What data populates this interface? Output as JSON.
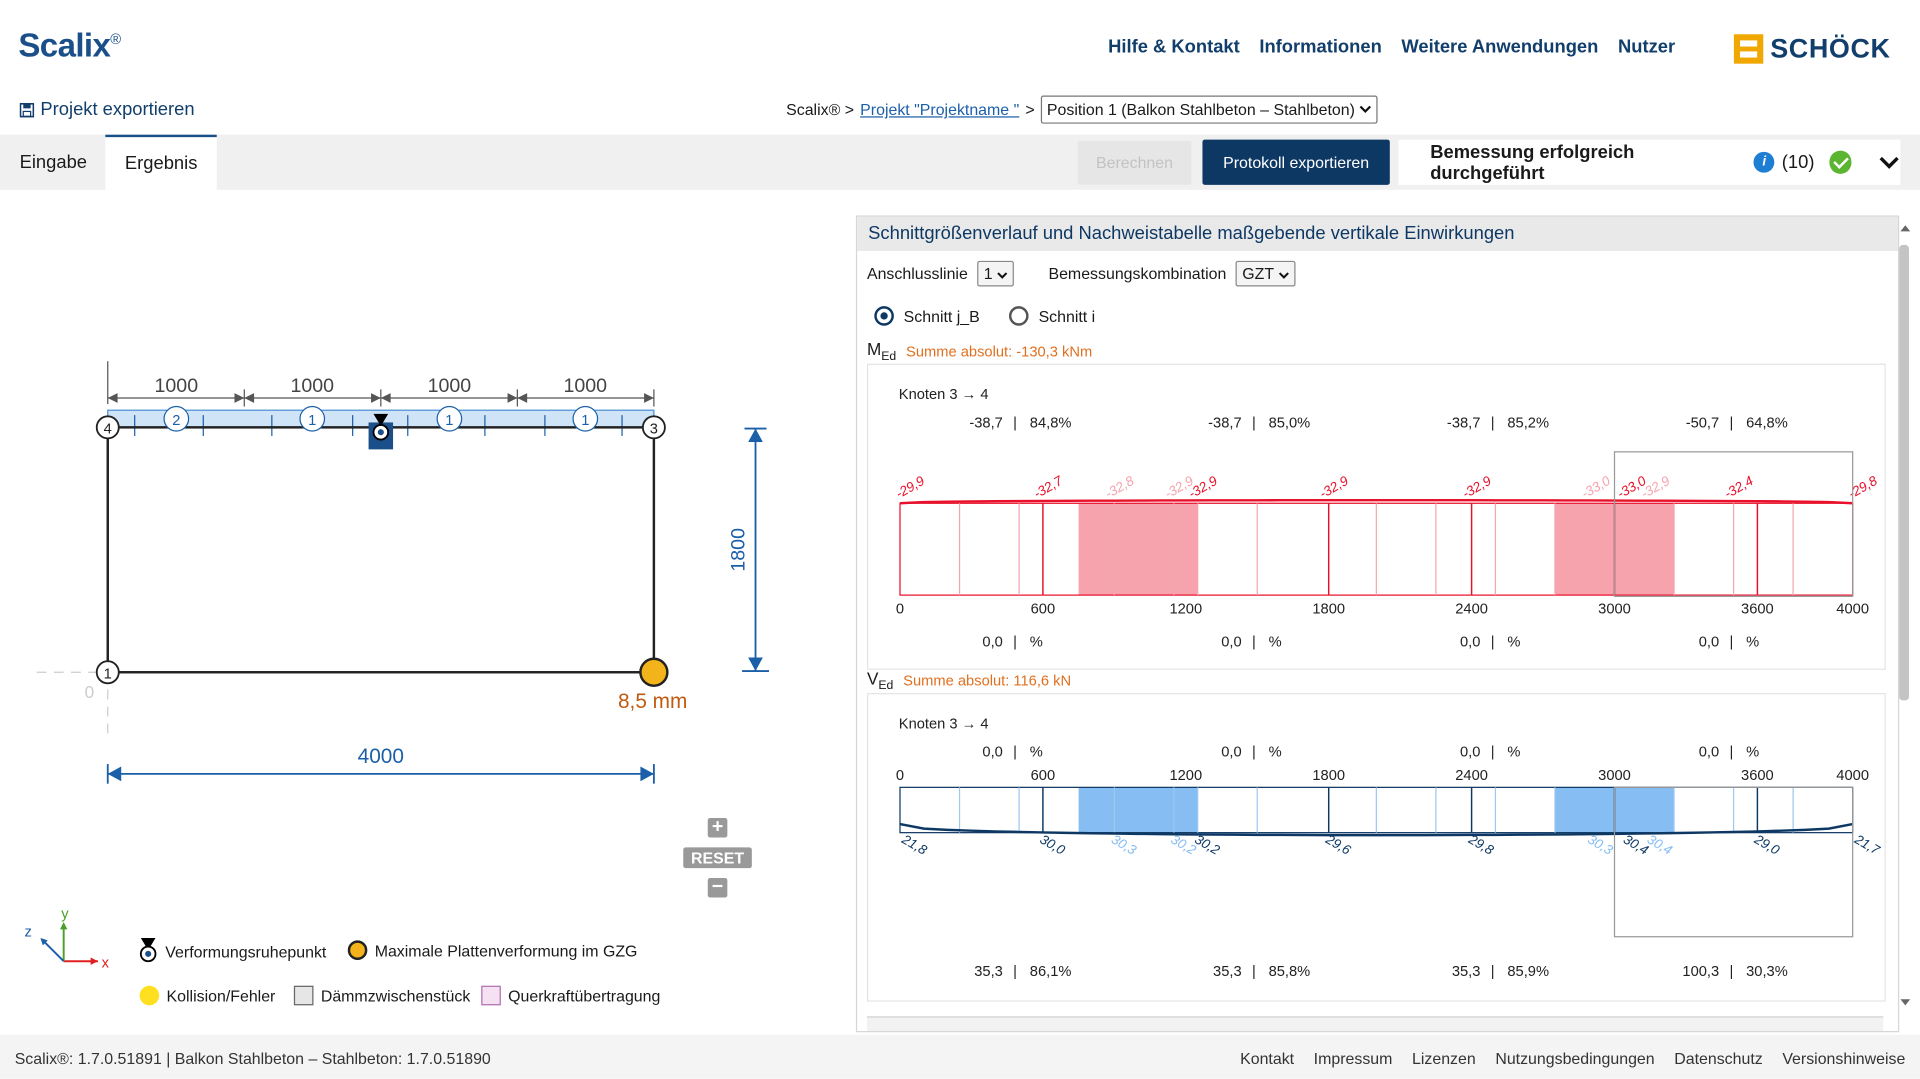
{
  "app": {
    "logo_text": "Scalix",
    "logo_mark": "®",
    "brand": "SCHÖCK"
  },
  "nav": {
    "items": [
      "Hilfe & Kontakt",
      "Informationen",
      "Weitere Anwendungen",
      "Nutzer"
    ]
  },
  "export_project": "Projekt exportieren",
  "breadcrumb": {
    "root": "Scalix® >",
    "project": "Projekt \"Projektname \"",
    "sep": ">",
    "position": "Position 1 (Balkon Stahlbeton – Stahlbeton)"
  },
  "tabs": {
    "input": "Eingabe",
    "result": "Ergebnis"
  },
  "toolbar": {
    "calc": "Berechnen",
    "export_protocol": "Protokoll exportieren"
  },
  "status": {
    "text": "Bemessung erfolgreich durchgeführt",
    "info": "i",
    "count": "(10)"
  },
  "drawing": {
    "spans": [
      "1000",
      "1000",
      "1000",
      "1000"
    ],
    "height": "1800",
    "width": "4000",
    "deflection": "8,5 mm",
    "origin": "0",
    "nodes": [
      "4",
      "3",
      "1"
    ],
    "elements": [
      "2",
      "1",
      "1",
      "1"
    ]
  },
  "zoom": {
    "plus": "+",
    "reset": "RESET",
    "minus": "−"
  },
  "legend": {
    "deform_point": "Verformungsruhepunkt",
    "max_deflection": "Maximale Plattenverformung im GZG",
    "collision": "Kollision/Fehler",
    "insulation": "Dämmzwischenstück",
    "shear": "Querkraftübertragung",
    "axis_x": "x",
    "axis_y": "y",
    "axis_z": "z"
  },
  "panel": {
    "title": "Schnittgrößenverlauf und Nachweistabelle maßgebende vertikale Einwirkungen",
    "line_label": "Anschlusslinie",
    "line_value": "1",
    "comb_label": "Bemessungskombination",
    "comb_value": "GZT",
    "radio1": "Schnitt j_B",
    "radio2": "Schnitt i",
    "med_symbol": "M",
    "med_sub": "Ed",
    "med_sum": "Summe absolut: -130,3 kNm",
    "ved_symbol": "V",
    "ved_sub": "Ed",
    "ved_sum": "Summe absolut: 116,6 kN"
  },
  "chart_data": [
    {
      "type": "line",
      "title": "Knoten 3 → 4",
      "series_label": "MEd",
      "x_ticks": [
        0,
        600,
        1200,
        1800,
        2400,
        3000,
        3600,
        4000
      ],
      "xlim": [
        0,
        4000
      ],
      "point_labels": [
        {
          "x": 0,
          "y": -29.9,
          "text": "-29,9",
          "faded": false
        },
        {
          "x": 600,
          "y": -32.7,
          "text": "-32,7",
          "faded": false
        },
        {
          "x": 900,
          "y": -32.8,
          "text": "-32,8",
          "faded": true
        },
        {
          "x": 1150,
          "y": -32.9,
          "text": "-32,9",
          "faded": true
        },
        {
          "x": 1250,
          "y": -32.9,
          "text": "-32,9",
          "faded": false
        },
        {
          "x": 1800,
          "y": -32.9,
          "text": "-32,9",
          "faded": false
        },
        {
          "x": 2400,
          "y": -32.9,
          "text": "-32,9",
          "faded": false
        },
        {
          "x": 2900,
          "y": -33.0,
          "text": "-33,0",
          "faded": true
        },
        {
          "x": 3050,
          "y": -33.0,
          "text": "-33,0",
          "faded": false
        },
        {
          "x": 3150,
          "y": -32.9,
          "text": "-32,9",
          "faded": true
        },
        {
          "x": 3500,
          "y": -32.4,
          "text": "-32,4",
          "faded": false
        },
        {
          "x": 4000,
          "y": -29.8,
          "text": "-29,8",
          "faded": false
        }
      ],
      "highlight_ranges": [
        [
          750,
          1250
        ],
        [
          2750,
          3250
        ]
      ],
      "top_values": [
        {
          "value": "-38,7",
          "percent": "84,8%"
        },
        {
          "value": "-38,7",
          "percent": "85,0%"
        },
        {
          "value": "-38,7",
          "percent": "85,2%"
        },
        {
          "value": "-50,7",
          "percent": "64,8%"
        }
      ],
      "bottom_values": [
        {
          "value": "0,0",
          "percent": "%"
        },
        {
          "value": "0,0",
          "percent": "%"
        },
        {
          "value": "0,0",
          "percent": "%"
        },
        {
          "value": "0,0",
          "percent": "%"
        }
      ],
      "color": "#e8102a",
      "fill": "#f7a3ad"
    },
    {
      "type": "line",
      "title": "Knoten 3 → 4",
      "series_label": "VEd",
      "x_ticks": [
        0,
        600,
        1200,
        1800,
        2400,
        3000,
        3600,
        4000
      ],
      "xlim": [
        0,
        4000
      ],
      "point_labels": [
        {
          "x": 0,
          "y": 21.8,
          "text": "21,8",
          "faded": false
        },
        {
          "x": 600,
          "y": 30.0,
          "text": "30,0",
          "faded": false
        },
        {
          "x": 900,
          "y": 30.3,
          "text": "30,3",
          "faded": true
        },
        {
          "x": 1150,
          "y": 30.2,
          "text": "30,2",
          "faded": true
        },
        {
          "x": 1250,
          "y": 30.2,
          "text": "30,2",
          "faded": false
        },
        {
          "x": 1800,
          "y": 29.6,
          "text": "29,6",
          "faded": false
        },
        {
          "x": 2400,
          "y": 29.8,
          "text": "29,8",
          "faded": false
        },
        {
          "x": 2900,
          "y": 30.3,
          "text": "30,3",
          "faded": true
        },
        {
          "x": 3050,
          "y": 30.4,
          "text": "30,4",
          "faded": false
        },
        {
          "x": 3150,
          "y": 30.4,
          "text": "30,4",
          "faded": true
        },
        {
          "x": 3600,
          "y": 29.0,
          "text": "29,0",
          "faded": false
        },
        {
          "x": 4000,
          "y": 21.7,
          "text": "21,7",
          "faded": false
        }
      ],
      "highlight_ranges": [
        [
          750,
          1250
        ],
        [
          2750,
          3250
        ]
      ],
      "top_values": [
        {
          "value": "0,0",
          "percent": "%"
        },
        {
          "value": "0,0",
          "percent": "%"
        },
        {
          "value": "0,0",
          "percent": "%"
        },
        {
          "value": "0,0",
          "percent": "%"
        }
      ],
      "bottom_values": [
        {
          "value": "35,3",
          "percent": "86,1%"
        },
        {
          "value": "35,3",
          "percent": "85,8%"
        },
        {
          "value": "35,3",
          "percent": "85,9%"
        },
        {
          "value": "100,3",
          "percent": "30,3%"
        }
      ],
      "color": "#0e3864",
      "fill": "#86bdf2"
    }
  ],
  "footer": {
    "version": "Scalix®: 1.7.0.51891 | Balkon Stahlbeton – Stahlbeton: 1.7.0.51890",
    "links": [
      "Kontakt",
      "Impressum",
      "Lizenzen",
      "Nutzungsbedingungen",
      "Datenschutz",
      "Versionshinweise"
    ]
  }
}
